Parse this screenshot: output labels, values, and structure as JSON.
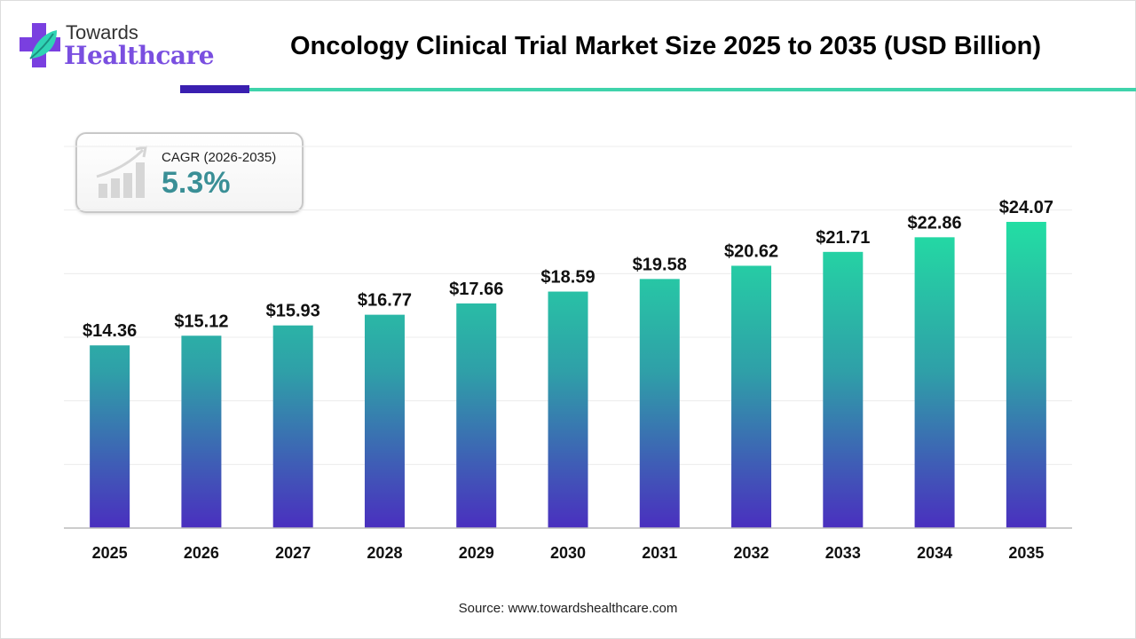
{
  "logo": {
    "line1": "Towards",
    "line2": "Healthcare"
  },
  "cagr": {
    "label": "CAGR (2026-2035)",
    "value": "5.3%",
    "icon": "growth-chart-icon"
  },
  "source": "Source: www.towardshealthcare.com",
  "colors": {
    "bar_top": "#22e0a3",
    "bar_mid": "#2f9fa8",
    "bar_bottom": "#4a2fbf",
    "accent_dark": "#3a1fb0",
    "accent_teal": "#3fd3ab",
    "cagr_value": "#3a8f96"
  },
  "chart_data": {
    "type": "bar",
    "title": "Oncology Clinical Trial Market Size 2025 to 2035 (USD Billion)",
    "categories": [
      "2025",
      "2026",
      "2027",
      "2028",
      "2029",
      "2030",
      "2031",
      "2032",
      "2033",
      "2034",
      "2035"
    ],
    "values": [
      14.36,
      15.12,
      15.93,
      16.77,
      17.66,
      18.59,
      19.58,
      20.62,
      21.71,
      22.86,
      24.07
    ],
    "labels": [
      "$14.36",
      "$15.12",
      "$15.93",
      "$16.77",
      "$17.66",
      "$18.59",
      "$19.58",
      "$20.62",
      "$21.71",
      "$22.86",
      "$24.07"
    ],
    "xlabel": "",
    "ylabel": "",
    "ylim": [
      0,
      30
    ],
    "grid": true,
    "y_axis_labels_shown": false
  }
}
